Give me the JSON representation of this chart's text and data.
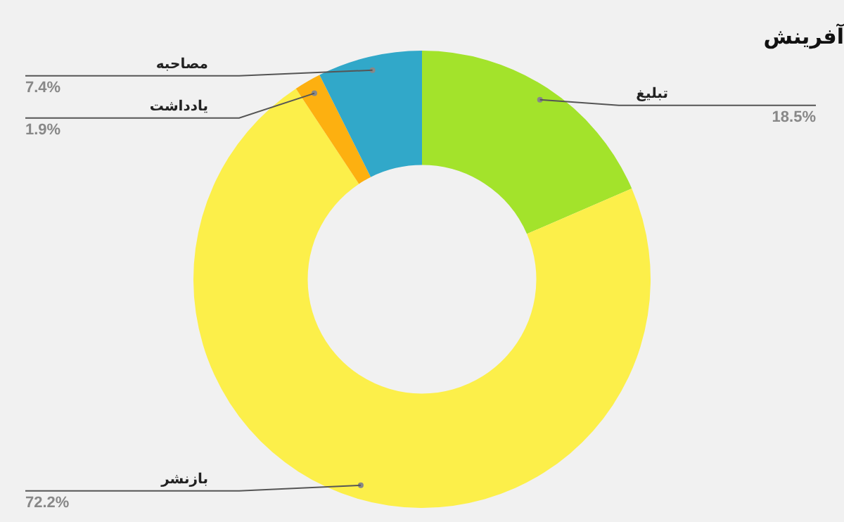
{
  "chart_data": {
    "type": "donut",
    "title": "آفرینش",
    "categories": [
      "تبلیغ",
      "بازنشر",
      "یادداشت",
      "مصاحبه"
    ],
    "values": [
      18.5,
      72.2,
      1.9,
      7.4
    ],
    "colors": [
      "#a3e32b",
      "#fcef4a",
      "#fdb010",
      "#31a8c9"
    ],
    "value_labels": [
      "18.5%",
      "72.2%",
      "1.9%",
      "7.4%"
    ]
  }
}
